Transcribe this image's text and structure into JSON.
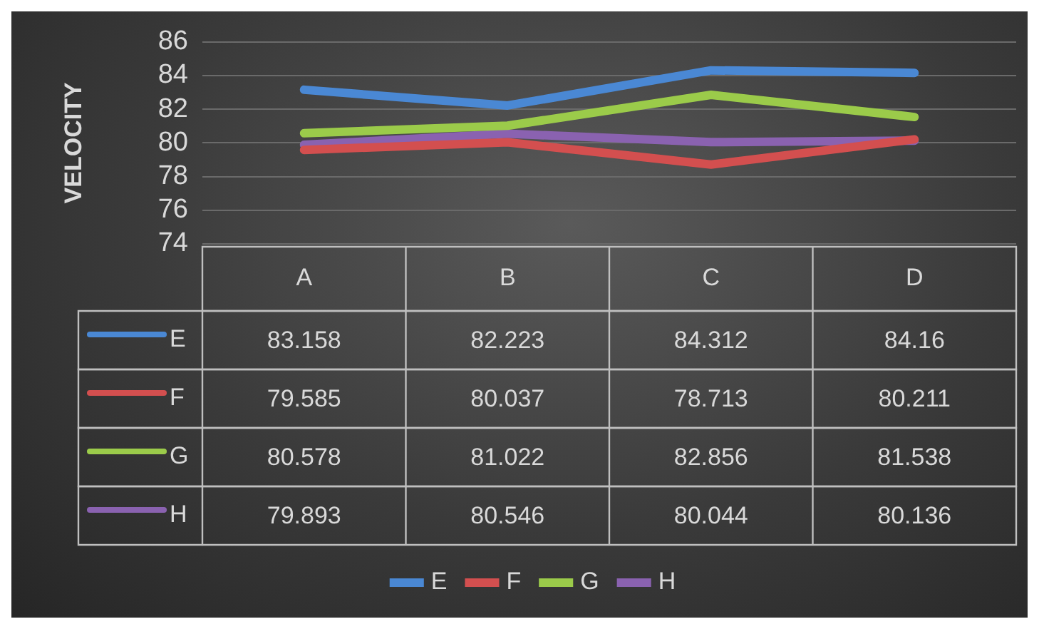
{
  "chart_data": {
    "type": "line",
    "ylabel": "VELOCITY",
    "categories": [
      "A",
      "B",
      "C",
      "D"
    ],
    "series": [
      {
        "name": "E",
        "color": "#4a88d4",
        "values": [
          83.158,
          82.223,
          84.312,
          84.16
        ]
      },
      {
        "name": "F",
        "color": "#d34f4f",
        "values": [
          79.585,
          80.037,
          78.713,
          80.211
        ]
      },
      {
        "name": "G",
        "color": "#9bcb4a",
        "values": [
          80.578,
          81.022,
          82.856,
          81.538
        ]
      },
      {
        "name": "H",
        "color": "#8a62b0",
        "values": [
          79.893,
          80.546,
          80.044,
          80.136
        ]
      }
    ],
    "ylim": [
      74,
      86
    ],
    "yticks": [
      74,
      76,
      78,
      80,
      82,
      84,
      86
    ],
    "grid": "y",
    "legend": "bottom",
    "marker": "none",
    "line_style": "solid",
    "data_labels": true
  }
}
